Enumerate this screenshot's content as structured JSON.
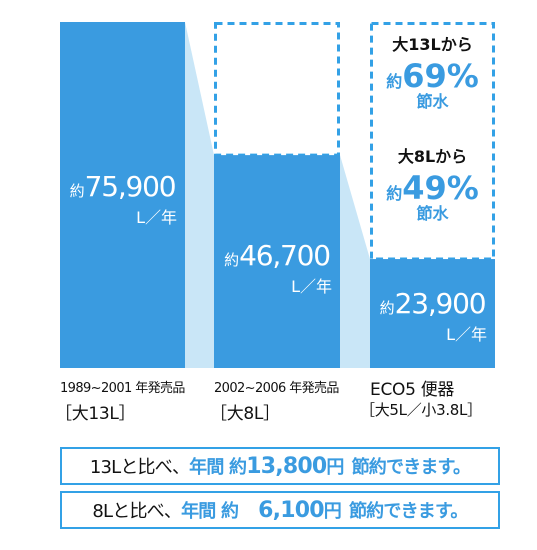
{
  "chart_data": {
    "type": "bar",
    "unit": "L／年",
    "prefix": "約",
    "categories": [
      {
        "period": "1989~2001 年発売品",
        "type_label": "［大13L］"
      },
      {
        "period": "2002~2006 年発売品",
        "type_label": "［大8L］"
      },
      {
        "period": "ECO5 便器",
        "type_label": "［大5L／小3.8L］"
      }
    ],
    "values": [
      75900,
      46700,
      23900
    ],
    "value_labels": [
      "75,900",
      "46,700",
      "23,900"
    ],
    "ylim": [
      0,
      75900
    ],
    "savings": [
      {
        "head": "大13Lから",
        "pct": "69%",
        "tail": "節水"
      },
      {
        "head": "大8Lから",
        "pct": "49%",
        "tail": "節水"
      }
    ]
  },
  "summary": [
    {
      "pre": "13Lと比べ、",
      "mid": "年間 約",
      "amount": "13,800",
      "unit": "円",
      "post": "節約できます。"
    },
    {
      "pre": "8Lと比べ、",
      "mid": "年間 約",
      "amount": "6,100",
      "unit": "円",
      "post": "節約できます。"
    }
  ],
  "colors": {
    "bar": "#3a9be0",
    "connector": "#c9e6f7",
    "dashed": "#33a1e6",
    "text_on_bar": "#ffffff",
    "accent": "#3a9be0"
  }
}
